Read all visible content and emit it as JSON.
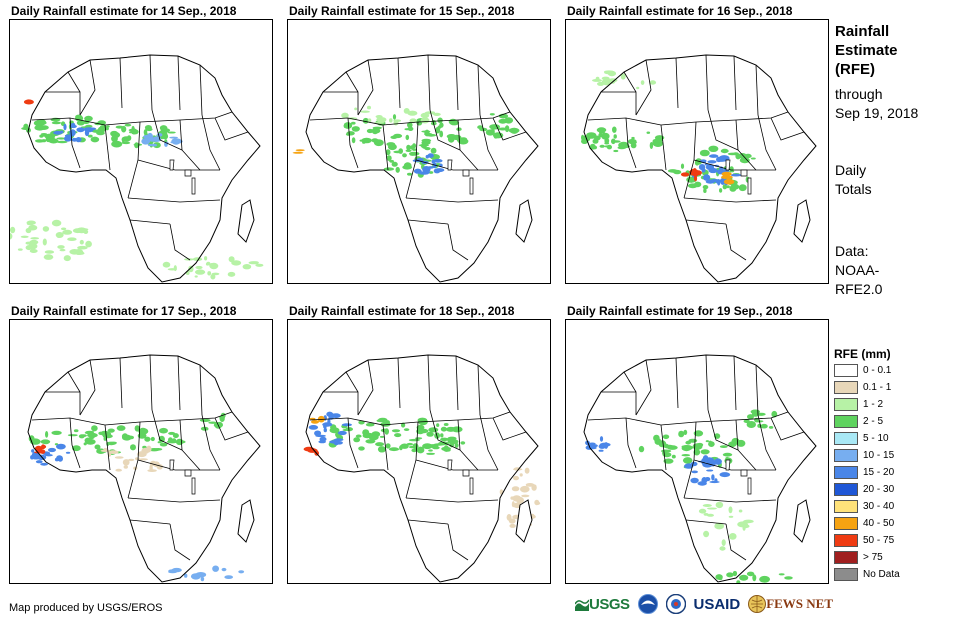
{
  "panels": [
    {
      "title": "Daily Rainfall estimate for 14 Sep., 2018"
    },
    {
      "title": "Daily Rainfall estimate for 15 Sep., 2018"
    },
    {
      "title": "Daily Rainfall estimate for 16 Sep., 2018"
    },
    {
      "title": "Daily Rainfall estimate for 17 Sep., 2018"
    },
    {
      "title": "Daily Rainfall estimate for 18 Sep., 2018"
    },
    {
      "title": "Daily Rainfall estimate for 19 Sep., 2018"
    }
  ],
  "side": {
    "title_line1": "Rainfall",
    "title_line2": "Estimate",
    "title_line3": "(RFE)",
    "through_line1": "through",
    "through_line2": "Sep 19, 2018",
    "daily_line1": "Daily",
    "daily_line2": "Totals",
    "data_line1": "Data:",
    "data_line2": "NOAA-",
    "data_line3": "RFE2.0"
  },
  "legend": {
    "title": "RFE (mm)",
    "items": [
      {
        "label": "0 - 0.1",
        "color": "#ffffff"
      },
      {
        "label": "0.1 - 1",
        "color": "#e8d7b9"
      },
      {
        "label": "1 - 2",
        "color": "#b7f2a6"
      },
      {
        "label": "2 - 5",
        "color": "#5fd35f"
      },
      {
        "label": "5 - 10",
        "color": "#a9e8f5"
      },
      {
        "label": "10 - 15",
        "color": "#77aef0"
      },
      {
        "label": "15 - 20",
        "color": "#4a86e8"
      },
      {
        "label": "20 - 30",
        "color": "#1f57d6"
      },
      {
        "label": "30 - 40",
        "color": "#ffe27a"
      },
      {
        "label": "40 - 50",
        "color": "#f6a312"
      },
      {
        "label": "50 - 75",
        "color": "#ef3b12"
      },
      {
        "label": "> 75",
        "color": "#a01f1f"
      },
      {
        "label": "No Data",
        "color": "#8c8c8c"
      }
    ]
  },
  "footer": {
    "credit": "Map produced by USGS/EROS"
  },
  "logos": {
    "usgs": "USGS",
    "usaid": "USAID",
    "fewsnet": "FEWS NET"
  }
}
